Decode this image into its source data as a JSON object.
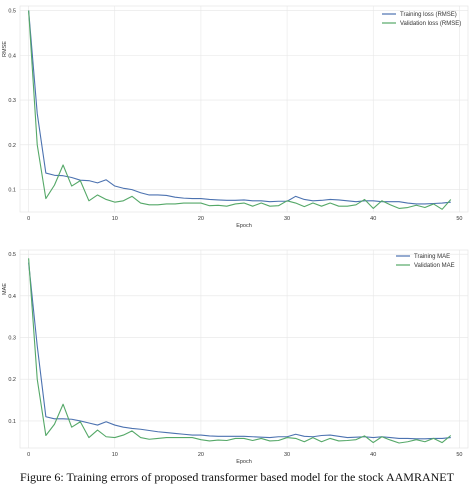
{
  "caption": "Figure 6: Training errors of proposed transformer based model for the stock AAMRANET",
  "chart_data": [
    {
      "type": "line",
      "xlabel": "Epoch",
      "ylabel": "RMSE",
      "xlim": [
        -1,
        51
      ],
      "ylim": [
        0.05,
        0.51
      ],
      "xticks": [
        0,
        10,
        20,
        30,
        40,
        50
      ],
      "yticks": [
        0.1,
        0.2,
        0.3,
        0.4,
        0.5
      ],
      "grid": true,
      "legend_position": "top-right",
      "series": [
        {
          "name": "Training loss (RMSE)",
          "color": "#4c72b0",
          "x": [
            0,
            1,
            2,
            3,
            4,
            5,
            6,
            7,
            8,
            9,
            10,
            11,
            12,
            13,
            14,
            15,
            16,
            17,
            18,
            19,
            20,
            21,
            22,
            23,
            24,
            25,
            26,
            27,
            28,
            29,
            30,
            31,
            32,
            33,
            34,
            35,
            36,
            37,
            38,
            39,
            40,
            41,
            42,
            43,
            44,
            45,
            46,
            47,
            48,
            49
          ],
          "y": [
            0.5,
            0.27,
            0.137,
            0.132,
            0.131,
            0.127,
            0.121,
            0.12,
            0.115,
            0.122,
            0.108,
            0.103,
            0.1,
            0.093,
            0.088,
            0.088,
            0.087,
            0.083,
            0.081,
            0.08,
            0.08,
            0.078,
            0.077,
            0.076,
            0.076,
            0.077,
            0.075,
            0.075,
            0.073,
            0.074,
            0.074,
            0.085,
            0.078,
            0.075,
            0.076,
            0.078,
            0.077,
            0.075,
            0.073,
            0.075,
            0.075,
            0.073,
            0.073,
            0.073,
            0.07,
            0.068,
            0.068,
            0.069,
            0.07,
            0.072
          ]
        },
        {
          "name": "Validation loss (RMSE)",
          "color": "#55a868",
          "x": [
            0,
            1,
            2,
            3,
            4,
            5,
            6,
            7,
            8,
            9,
            10,
            11,
            12,
            13,
            14,
            15,
            16,
            17,
            18,
            19,
            20,
            21,
            22,
            23,
            24,
            25,
            26,
            27,
            28,
            29,
            30,
            31,
            32,
            33,
            34,
            35,
            36,
            37,
            38,
            39,
            40,
            41,
            42,
            43,
            44,
            45,
            46,
            47,
            48,
            49
          ],
          "y": [
            0.5,
            0.2,
            0.08,
            0.11,
            0.155,
            0.108,
            0.12,
            0.075,
            0.088,
            0.078,
            0.072,
            0.075,
            0.085,
            0.07,
            0.066,
            0.066,
            0.068,
            0.068,
            0.07,
            0.07,
            0.07,
            0.064,
            0.065,
            0.063,
            0.068,
            0.07,
            0.063,
            0.07,
            0.063,
            0.064,
            0.075,
            0.07,
            0.062,
            0.07,
            0.063,
            0.07,
            0.063,
            0.063,
            0.066,
            0.078,
            0.058,
            0.075,
            0.066,
            0.058,
            0.06,
            0.065,
            0.06,
            0.068,
            0.056,
            0.078
          ]
        }
      ]
    },
    {
      "type": "line",
      "xlabel": "Epoch",
      "ylabel": "MAE",
      "xlim": [
        -1,
        51
      ],
      "ylim": [
        0.035,
        0.51
      ],
      "xticks": [
        0,
        10,
        20,
        30,
        40,
        50
      ],
      "yticks": [
        0.1,
        0.2,
        0.3,
        0.4,
        0.5
      ],
      "grid": true,
      "legend_position": "top-right",
      "series": [
        {
          "name": "Training MAE",
          "color": "#4c72b0",
          "x": [
            0,
            1,
            2,
            3,
            4,
            5,
            6,
            7,
            8,
            9,
            10,
            11,
            12,
            13,
            14,
            15,
            16,
            17,
            18,
            19,
            20,
            21,
            22,
            23,
            24,
            25,
            26,
            27,
            28,
            29,
            30,
            31,
            32,
            33,
            34,
            35,
            36,
            37,
            38,
            39,
            40,
            41,
            42,
            43,
            44,
            45,
            46,
            47,
            48,
            49
          ],
          "y": [
            0.48,
            0.28,
            0.11,
            0.105,
            0.105,
            0.104,
            0.1,
            0.095,
            0.09,
            0.098,
            0.09,
            0.085,
            0.082,
            0.08,
            0.077,
            0.074,
            0.072,
            0.07,
            0.068,
            0.066,
            0.066,
            0.064,
            0.063,
            0.063,
            0.063,
            0.063,
            0.062,
            0.061,
            0.06,
            0.062,
            0.062,
            0.068,
            0.063,
            0.062,
            0.065,
            0.066,
            0.063,
            0.06,
            0.061,
            0.062,
            0.06,
            0.062,
            0.06,
            0.058,
            0.058,
            0.057,
            0.057,
            0.058,
            0.058,
            0.06
          ]
        },
        {
          "name": "Validation MAE",
          "color": "#55a868",
          "x": [
            0,
            1,
            2,
            3,
            4,
            5,
            6,
            7,
            8,
            9,
            10,
            11,
            12,
            13,
            14,
            15,
            16,
            17,
            18,
            19,
            20,
            21,
            22,
            23,
            24,
            25,
            26,
            27,
            28,
            29,
            30,
            31,
            32,
            33,
            34,
            35,
            36,
            37,
            38,
            39,
            40,
            41,
            42,
            43,
            44,
            45,
            46,
            47,
            48,
            49
          ],
          "y": [
            0.49,
            0.2,
            0.065,
            0.092,
            0.14,
            0.085,
            0.098,
            0.06,
            0.078,
            0.062,
            0.06,
            0.066,
            0.076,
            0.06,
            0.056,
            0.058,
            0.06,
            0.06,
            0.06,
            0.06,
            0.055,
            0.052,
            0.054,
            0.053,
            0.058,
            0.058,
            0.053,
            0.058,
            0.052,
            0.053,
            0.06,
            0.058,
            0.05,
            0.06,
            0.05,
            0.058,
            0.052,
            0.053,
            0.055,
            0.064,
            0.048,
            0.062,
            0.054,
            0.047,
            0.05,
            0.055,
            0.05,
            0.058,
            0.048,
            0.065
          ]
        }
      ]
    }
  ]
}
